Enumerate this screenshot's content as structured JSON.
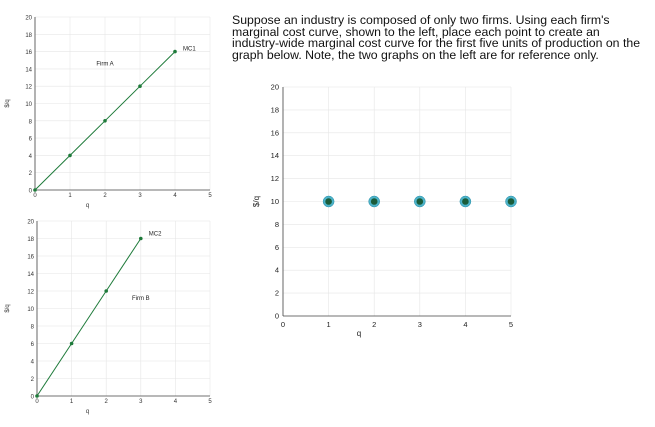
{
  "instructions": "Suppose an industry is composed of only two firms. Using each firm's marginal cost curve, shown to the left, place each point to create an industry-wide marginal cost curve for the first five units of production on the graph below. Note, the two graphs on the left are for reference only.",
  "chart_data": [
    {
      "type": "line",
      "id": "firm-a",
      "title": "Firm A",
      "series": [
        {
          "name": "MC1",
          "x": [
            0,
            1,
            2,
            3,
            4
          ],
          "y": [
            0,
            4,
            8,
            12,
            16
          ]
        }
      ],
      "xlabel": "q",
      "ylabel": "$/q",
      "xlim": [
        0,
        5
      ],
      "ylim": [
        0,
        20
      ],
      "xticks": [
        0,
        1,
        2,
        3,
        4,
        5
      ],
      "yticks": [
        0,
        2,
        4,
        6,
        8,
        10,
        12,
        14,
        16,
        18,
        20
      ],
      "grid": true,
      "color": "#1e7a3a"
    },
    {
      "type": "line",
      "id": "firm-b",
      "title": "Firm B",
      "series": [
        {
          "name": "MC2",
          "x": [
            0,
            1,
            2,
            3
          ],
          "y": [
            0,
            6,
            12,
            18
          ]
        }
      ],
      "xlabel": "q",
      "ylabel": "$/q",
      "xlim": [
        0,
        5
      ],
      "ylim": [
        0,
        20
      ],
      "xticks": [
        0,
        1,
        2,
        3,
        4,
        5
      ],
      "yticks": [
        0,
        2,
        4,
        6,
        8,
        10,
        12,
        14,
        16,
        18,
        20
      ],
      "grid": true,
      "color": "#1e7a3a"
    },
    {
      "type": "scatter",
      "id": "industry",
      "title": "",
      "series": [
        {
          "x": [
            1,
            2,
            3,
            4,
            5
          ],
          "y": [
            10,
            10,
            10,
            10,
            10
          ]
        }
      ],
      "xlabel": "q",
      "ylabel": "$/q",
      "xlim": [
        0,
        5
      ],
      "ylim": [
        0,
        20
      ],
      "xticks": [
        0,
        1,
        2,
        3,
        4,
        5
      ],
      "yticks": [
        0,
        2,
        4,
        6,
        8,
        10,
        12,
        14,
        16,
        18,
        20
      ],
      "grid": true,
      "color": "#1a5c3a",
      "point_ring_color": "#4db3c9"
    }
  ]
}
